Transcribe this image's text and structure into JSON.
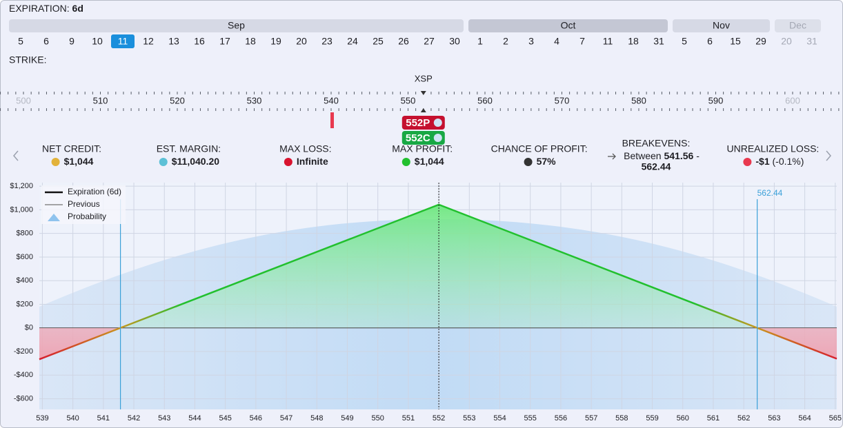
{
  "header": {
    "label": "EXPIRATION:",
    "value": "6d"
  },
  "expirations": [
    {
      "month": "Sep",
      "dates": [
        5,
        6,
        9,
        10,
        11,
        12,
        13,
        16,
        17,
        18,
        19,
        20,
        23,
        24,
        25,
        26,
        27,
        30
      ],
      "selected": 11
    },
    {
      "month": "Oct",
      "dates": [
        1,
        2,
        3,
        4,
        7,
        11,
        18,
        31
      ]
    },
    {
      "month": "Nov",
      "dates": [
        5,
        6,
        15,
        29
      ]
    },
    {
      "month": "Dec",
      "dates": [
        20,
        31
      ],
      "disabled": true
    }
  ],
  "strike": {
    "label": "STRIKE:",
    "underlying": "XSP",
    "xlim": [
      496.95,
      606.55
    ],
    "ticks": [
      500,
      510,
      520,
      530,
      540,
      550,
      560,
      570,
      580,
      590,
      600
    ],
    "legs": [
      {
        "label": "552P",
        "strike": 552,
        "color": "#c5102f"
      },
      {
        "label": "552C",
        "strike": 552,
        "color": "#18a844"
      }
    ]
  },
  "stats": [
    {
      "label": "NET CREDIT:",
      "value": "$1,044"
    },
    {
      "label": "EST. MARGIN:",
      "value": "$11,040.20"
    },
    {
      "label": "MAX LOSS:",
      "value": "Infinite"
    },
    {
      "label": "MAX PROFIT:",
      "value": "$1,044"
    },
    {
      "label": "CHANCE OF PROFIT:",
      "value": "57%"
    },
    {
      "label": "BREAKEVENS:",
      "value": [
        "Between",
        "541.56",
        "-",
        "562.44"
      ]
    },
    {
      "label": "UNREALIZED LOSS:",
      "value": "-$1",
      "detail": "(-0.1%)"
    }
  ],
  "chart_data": {
    "type": "line",
    "xlim": [
      538.9,
      565.05
    ],
    "ylim": [
      -690,
      1230
    ],
    "xticks": [
      539,
      540,
      541,
      542,
      543,
      544,
      545,
      546,
      547,
      548,
      549,
      550,
      551,
      552,
      553,
      554,
      555,
      556,
      557,
      558,
      559,
      560,
      561,
      562,
      563,
      564,
      565
    ],
    "yticks": [
      {
        "value": -600,
        "label": "-$600"
      },
      {
        "value": -400,
        "label": "-$400"
      },
      {
        "value": -200,
        "label": "-$200"
      },
      {
        "value": 0,
        "label": "$0"
      },
      {
        "value": 200,
        "label": "$200"
      },
      {
        "value": 400,
        "label": "$400"
      },
      {
        "value": 600,
        "label": "$600"
      },
      {
        "value": 800,
        "label": "$800"
      },
      {
        "value": 1000,
        "label": "$1,000"
      },
      {
        "value": 1200,
        "label": "$1,200"
      }
    ],
    "grid": true,
    "legend": "upper left",
    "series": [
      {
        "name": "Expiration (6d)",
        "color": "#22c02e",
        "x": [
          538.9,
          541.56,
          552,
          562.44,
          565.05
        ],
        "values": [
          -266,
          0,
          1044,
          0,
          -261
        ]
      }
    ],
    "legend_extra": [
      {
        "name": "Previous",
        "color": "#888888"
      },
      {
        "name": "Probability",
        "color": "#8fc3ee"
      }
    ],
    "breakevens": {
      "values": [
        541.56,
        562.44
      ],
      "color": "#3aa0d8"
    },
    "price_line": 552
  }
}
